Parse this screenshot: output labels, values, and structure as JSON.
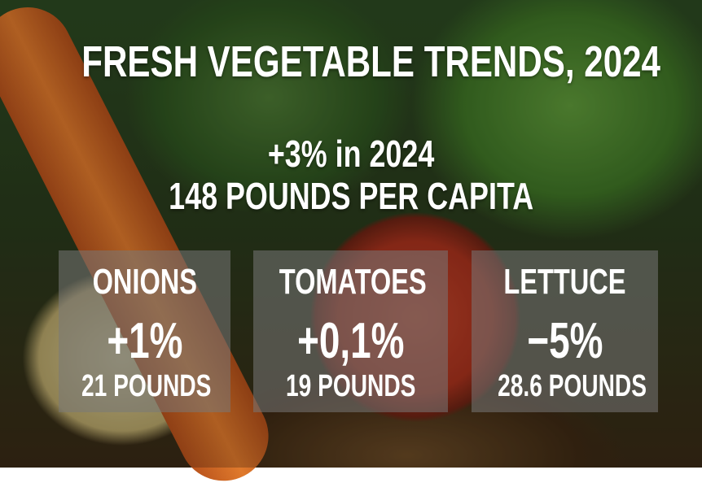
{
  "title": "FRESH VEGETABLE TRENDS, 2024",
  "headline": {
    "change": "+3% in 2024",
    "amount": "148 POUNDS PER CAPITA"
  },
  "cards": [
    {
      "name": "ONIONS",
      "change": "+1%",
      "amount": "21 POUNDS"
    },
    {
      "name": "TOMATOES",
      "change": "+0,1%",
      "amount": "19 POUNDS"
    },
    {
      "name": "LETTUCE",
      "change": "−5%",
      "amount": "28.6 POUNDS"
    }
  ]
}
